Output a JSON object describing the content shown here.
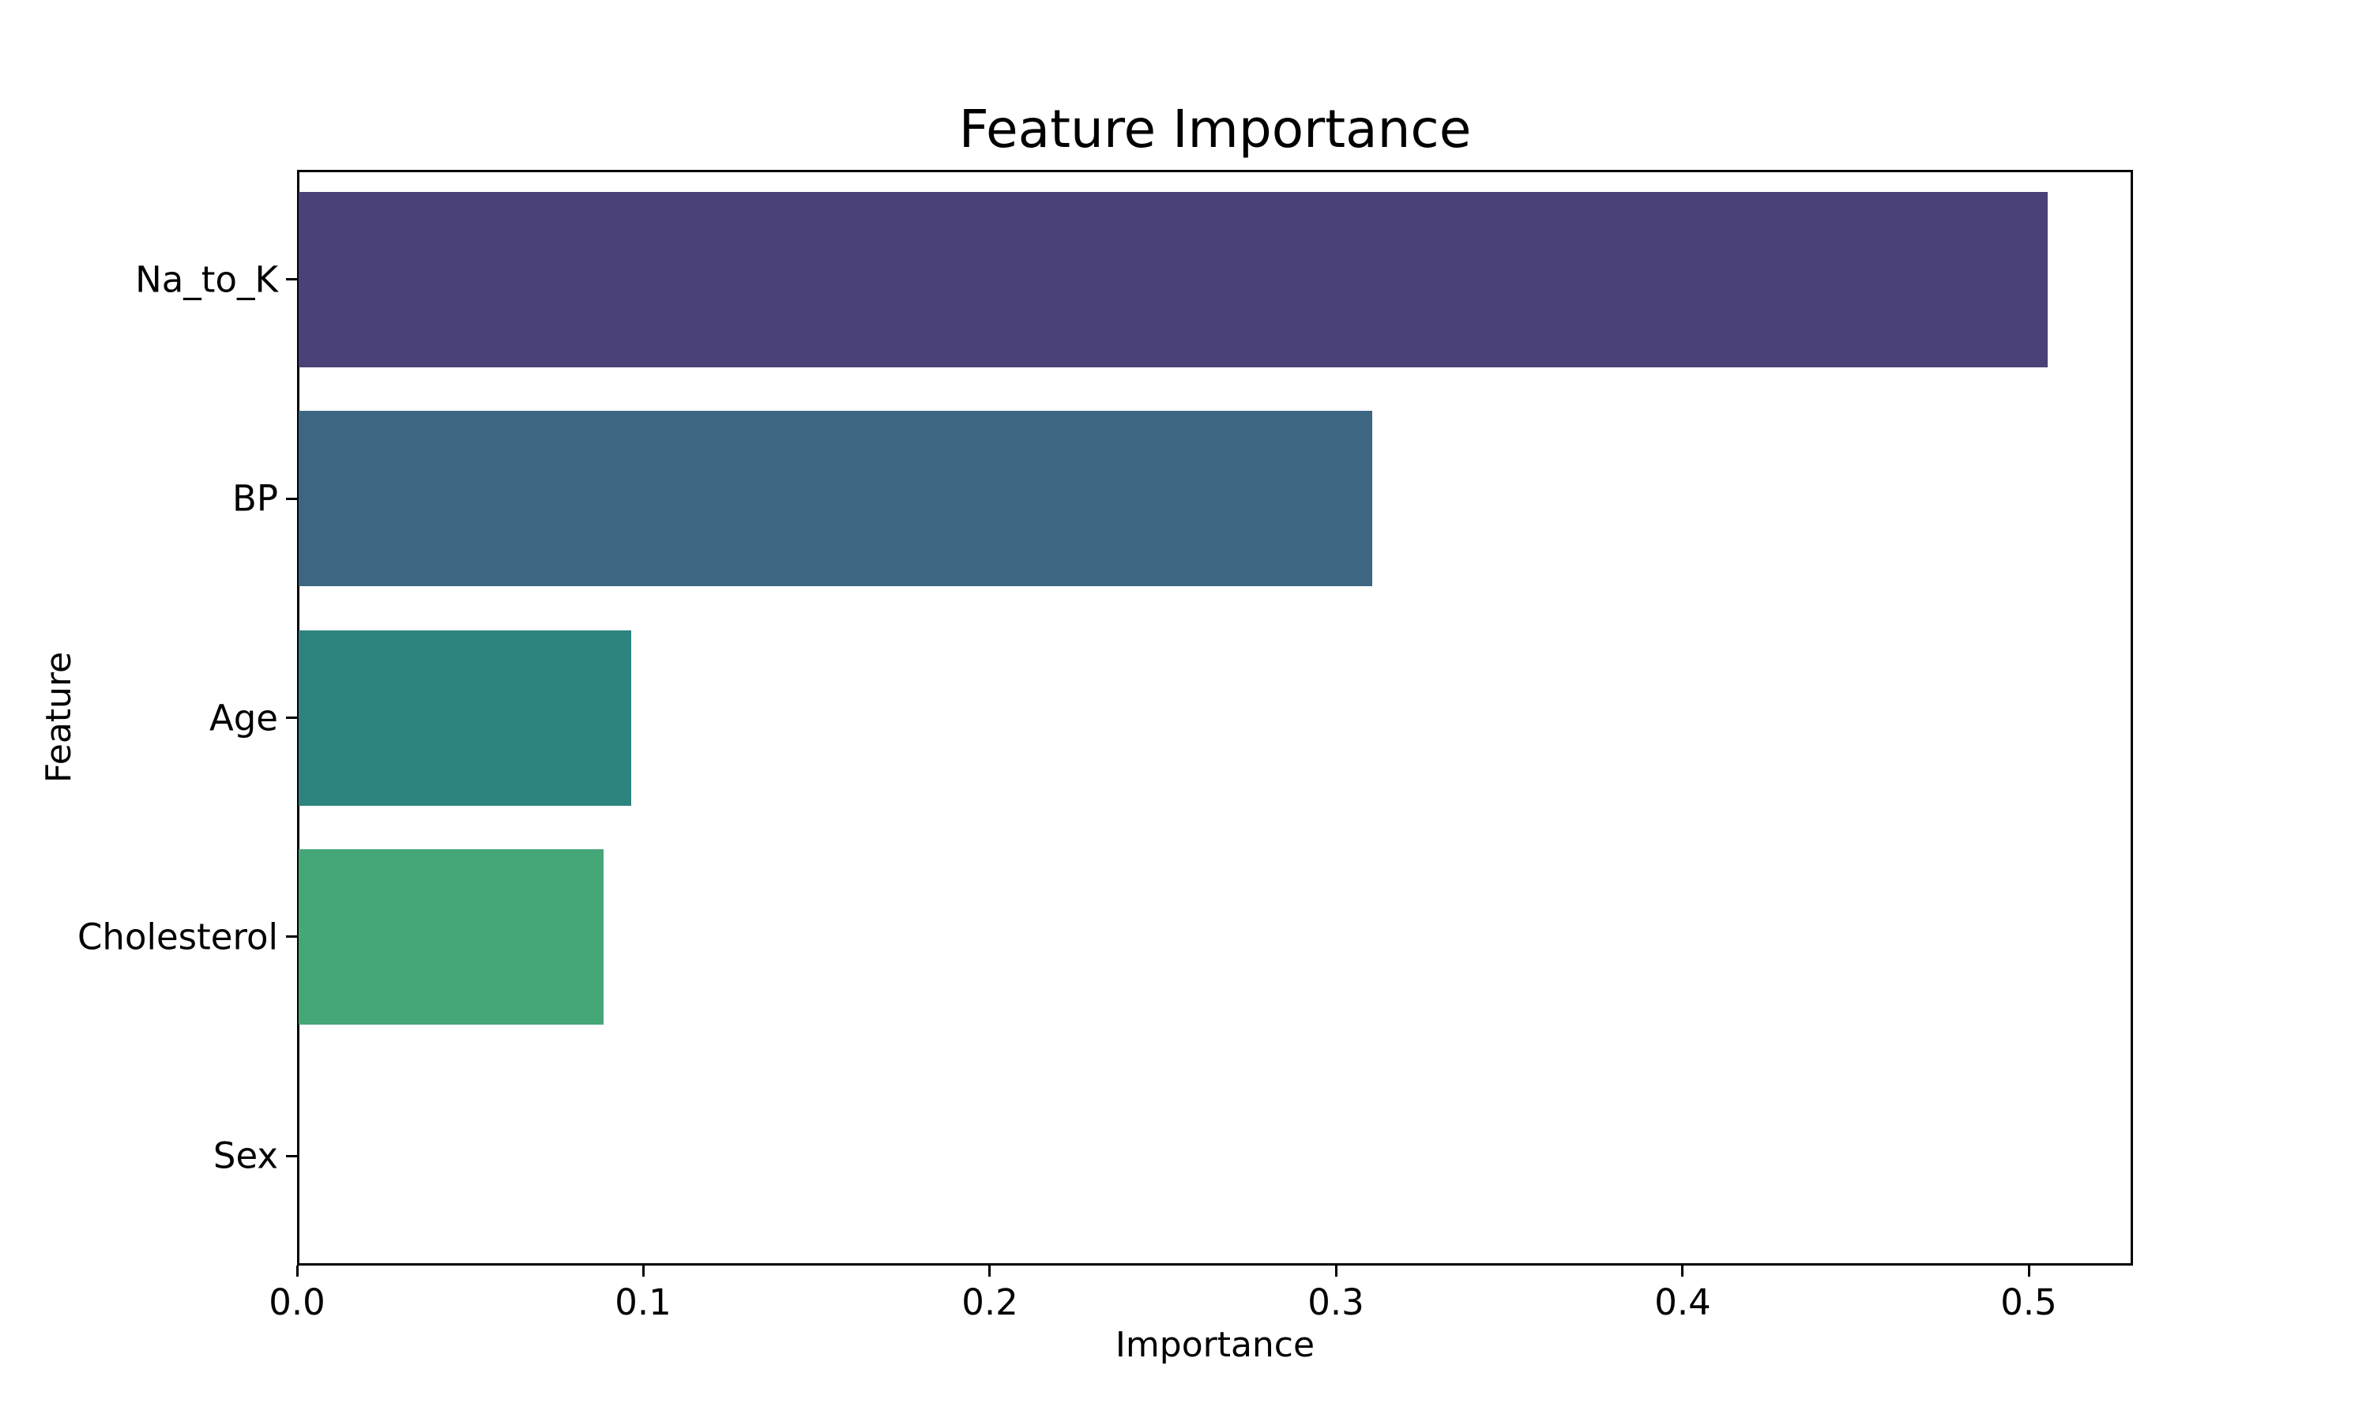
{
  "chart_data": {
    "type": "bar",
    "orientation": "horizontal",
    "title": "Feature Importance",
    "xlabel": "Importance",
    "ylabel": "Feature",
    "categories": [
      "Na_to_K",
      "BP",
      "Age",
      "Cholesterol",
      "Sex"
    ],
    "values": [
      0.505,
      0.31,
      0.096,
      0.088,
      0.0
    ],
    "bar_colors": [
      "#494177",
      "#3d6683",
      "#2d837e",
      "#45a678",
      null
    ],
    "xlim": [
      0.0,
      0.5301
    ],
    "xticks": [
      0.0,
      0.1,
      0.2,
      0.3,
      0.4,
      0.5
    ],
    "xtick_labels": [
      "0.0",
      "0.1",
      "0.2",
      "0.3",
      "0.4",
      "0.5"
    ],
    "bar_fraction": 0.8,
    "grid": false,
    "legend": null,
    "background_color": "#ffffff",
    "text_color": "#000000",
    "spine_color": "#000000"
  }
}
